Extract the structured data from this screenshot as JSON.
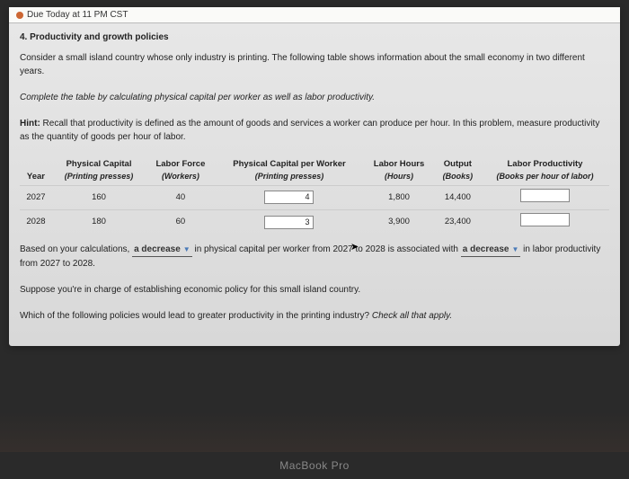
{
  "dueBar": {
    "label": "Due Today at 11 PM CST"
  },
  "sectionTitle": "4. Productivity and growth policies",
  "intro": "Consider a small island country whose only industry is printing. The following table shows information about the small economy in two different years.",
  "instruction": "Complete the table by calculating physical capital per worker as well as labor productivity.",
  "hintLabel": "Hint:",
  "hintText": " Recall that productivity is defined as the amount of goods and services a worker can produce per hour. In this problem, measure productivity as the quantity of goods per hour of labor.",
  "table": {
    "headers": {
      "year": "Year",
      "capital": "Physical Capital",
      "capitalSub": "(Printing presses)",
      "labor": "Labor Force",
      "laborSub": "(Workers)",
      "capPerWorker": "Physical Capital per Worker",
      "capPerWorkerSub": "(Printing presses)",
      "hours": "Labor Hours",
      "hoursSub": "(Hours)",
      "output": "Output",
      "outputSub": "(Books)",
      "productivity": "Labor Productivity",
      "productivitySub": "(Books per hour of labor)"
    },
    "rows": [
      {
        "year": "2027",
        "capital": "160",
        "labor": "40",
        "capPerWorker": "4",
        "hours": "1,800",
        "output": "14,400",
        "productivity": ""
      },
      {
        "year": "2028",
        "capital": "180",
        "labor": "60",
        "capPerWorker": "3",
        "hours": "3,900",
        "output": "23,400",
        "productivity": ""
      }
    ]
  },
  "analysis": {
    "pre1": "Based on your calculations, ",
    "dd1": "a decrease",
    "mid1": " in physical capital per worker from 2027 to 2028 is associated with ",
    "dd2": "a decrease",
    "post1": " in labor productivity from 2027 to 2028."
  },
  "suppose": "Suppose you're in charge of establishing economic policy for this small island country.",
  "question": "Which of the following policies would lead to greater productivity in the printing industry? ",
  "checkAll": "Check all that apply.",
  "macbook": "MacBook Pro"
}
